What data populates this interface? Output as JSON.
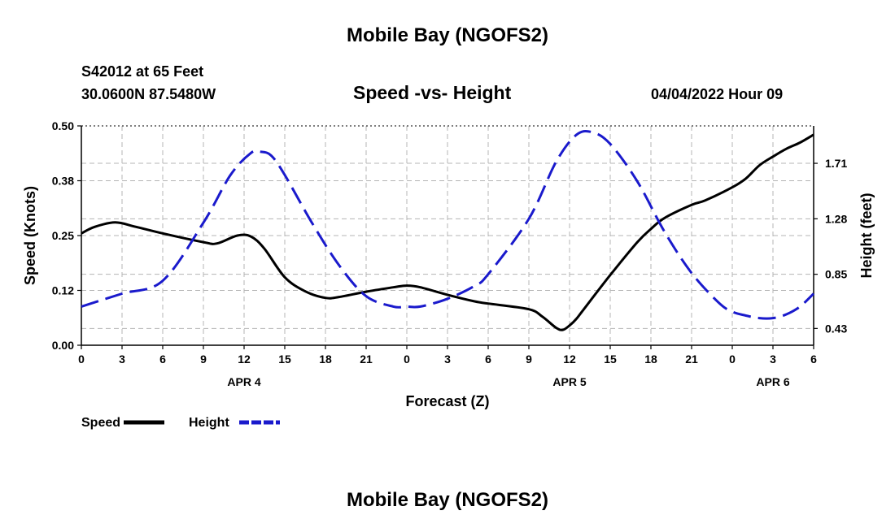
{
  "header": {
    "title_top": "Mobile Bay (NGOFS2)",
    "station": "S42012 at 65 Feet",
    "coords": "30.0600N  87.5480W",
    "subtitle": "Speed -vs- Height",
    "datetime": "04/04/2022 Hour 09",
    "title_bottom": "Mobile Bay (NGOFS2)"
  },
  "chart_data": {
    "type": "line",
    "title": "Speed -vs- Height",
    "xlabel": "Forecast (Z)",
    "ylabel_left": "Speed (Knots)",
    "ylabel_right": "Height (feet)",
    "x_range_hours": [
      0,
      54
    ],
    "x_ticks": [
      {
        "h": 0,
        "label": "0"
      },
      {
        "h": 3,
        "label": "3"
      },
      {
        "h": 6,
        "label": "6"
      },
      {
        "h": 9,
        "label": "9"
      },
      {
        "h": 12,
        "label": "12"
      },
      {
        "h": 15,
        "label": "15"
      },
      {
        "h": 18,
        "label": "18"
      },
      {
        "h": 21,
        "label": "21"
      },
      {
        "h": 24,
        "label": "0"
      },
      {
        "h": 27,
        "label": "3"
      },
      {
        "h": 30,
        "label": "6"
      },
      {
        "h": 33,
        "label": "9"
      },
      {
        "h": 36,
        "label": "12"
      },
      {
        "h": 39,
        "label": "15"
      },
      {
        "h": 42,
        "label": "18"
      },
      {
        "h": 45,
        "label": "21"
      },
      {
        "h": 48,
        "label": "0"
      },
      {
        "h": 51,
        "label": "3"
      },
      {
        "h": 54,
        "label": "6"
      }
    ],
    "day_labels": [
      {
        "h": 12,
        "label": "APR 4"
      },
      {
        "h": 36,
        "label": "APR 5"
      },
      {
        "h": 51,
        "label": "APR 6"
      }
    ],
    "y_left": {
      "min": 0,
      "max": 0.5,
      "ticks": [
        {
          "v": 0.0,
          "label": "0.00"
        },
        {
          "v": 0.125,
          "label": "0.12"
        },
        {
          "v": 0.25,
          "label": "0.25"
        },
        {
          "v": 0.375,
          "label": "0.38"
        },
        {
          "v": 0.5,
          "label": "0.50"
        }
      ]
    },
    "y_right": {
      "min": 0.3,
      "max": 2.0,
      "ticks": [
        {
          "v": 0.43,
          "label": "0.43"
        },
        {
          "v": 0.85,
          "label": "0.85"
        },
        {
          "v": 1.28,
          "label": "1.28"
        },
        {
          "v": 1.71,
          "label": "1.71"
        }
      ]
    },
    "series": [
      {
        "name": "Speed",
        "axis": "left",
        "color": "#000000",
        "style": "solid",
        "x": [
          0,
          1,
          2.5,
          4,
          6,
          9,
          10,
          11.5,
          12.5,
          13.5,
          15,
          16.5,
          18,
          19,
          21,
          23,
          24,
          25,
          27,
          29,
          30,
          33,
          34,
          35,
          35.5,
          36,
          36.5,
          37,
          39,
          41,
          42,
          43,
          45,
          46,
          48,
          49,
          50,
          51,
          52,
          53,
          54
        ],
        "values": [
          0.255,
          0.27,
          0.28,
          0.27,
          0.255,
          0.235,
          0.232,
          0.25,
          0.248,
          0.22,
          0.155,
          0.123,
          0.108,
          0.11,
          0.122,
          0.132,
          0.136,
          0.132,
          0.115,
          0.1,
          0.095,
          0.082,
          0.065,
          0.04,
          0.035,
          0.045,
          0.06,
          0.08,
          0.16,
          0.235,
          0.265,
          0.29,
          0.32,
          0.33,
          0.36,
          0.38,
          0.41,
          0.43,
          0.448,
          0.462,
          0.48
        ]
      },
      {
        "name": "Height",
        "axis": "right",
        "color": "#1a1acc",
        "style": "dashed",
        "x": [
          0,
          3,
          6,
          9,
          11,
          12.5,
          13.2,
          14,
          15,
          17,
          19,
          21,
          23,
          24,
          25,
          27,
          29,
          30,
          33,
          35,
          36.5,
          37.7,
          39,
          41,
          43,
          45,
          47,
          48,
          49,
          50,
          51,
          52,
          53,
          54
        ],
        "values": [
          0.6,
          0.7,
          0.8,
          1.25,
          1.62,
          1.79,
          1.8,
          1.77,
          1.62,
          1.25,
          0.92,
          0.68,
          0.6,
          0.6,
          0.6,
          0.66,
          0.76,
          0.85,
          1.28,
          1.72,
          1.93,
          1.95,
          1.86,
          1.57,
          1.18,
          0.86,
          0.63,
          0.56,
          0.53,
          0.51,
          0.51,
          0.54,
          0.6,
          0.7
        ]
      }
    ],
    "legend": [
      {
        "label": "Speed",
        "color": "#000000",
        "style": "solid"
      },
      {
        "label": "Height",
        "color": "#1a1acc",
        "style": "dashed"
      }
    ]
  }
}
